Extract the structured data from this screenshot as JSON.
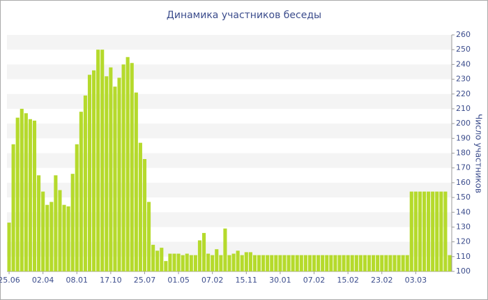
{
  "chart_data": {
    "type": "bar",
    "title": "Динамика участников беседы",
    "y_label": "Число участников",
    "categories": [
      "25.06",
      null,
      null,
      null,
      null,
      null,
      null,
      null,
      "02.04",
      null,
      null,
      null,
      null,
      null,
      null,
      null,
      "08.01",
      null,
      null,
      null,
      null,
      null,
      null,
      null,
      "17.10",
      null,
      null,
      null,
      null,
      null,
      null,
      null,
      "25.07",
      null,
      null,
      null,
      null,
      null,
      null,
      null,
      "01.05",
      null,
      null,
      null,
      null,
      null,
      null,
      null,
      "07.02",
      null,
      null,
      null,
      null,
      null,
      null,
      null,
      "15.11",
      null,
      null,
      null,
      null,
      null,
      null,
      null,
      "30.01",
      null,
      null,
      null,
      null,
      null,
      null,
      null,
      "07.02",
      null,
      null,
      null,
      null,
      null,
      null,
      null,
      "15.02",
      null,
      null,
      null,
      null,
      null,
      null,
      null,
      "23.02",
      null,
      null,
      null,
      null,
      null,
      null,
      null,
      "03.03",
      null,
      null,
      null,
      null,
      null,
      null,
      null,
      null
    ],
    "values": [
      133,
      186,
      204,
      210,
      207,
      203,
      202,
      165,
      154,
      145,
      147,
      165,
      155,
      145,
      144,
      166,
      186,
      208,
      219,
      233,
      236,
      250,
      250,
      232,
      238,
      225,
      231,
      240,
      245,
      241,
      221,
      187,
      176,
      147,
      118,
      114,
      116,
      107,
      112,
      112,
      112,
      111,
      112,
      111,
      111,
      121,
      126,
      112,
      111,
      115,
      111,
      129,
      111,
      112,
      114,
      111,
      113,
      113,
      111,
      111,
      111,
      111,
      111,
      111,
      111,
      111,
      111,
      111,
      111,
      111,
      111,
      111,
      111,
      111,
      111,
      111,
      111,
      111,
      111,
      111,
      111,
      111,
      111,
      111,
      111,
      111,
      111,
      111,
      111,
      111,
      111,
      111,
      111,
      111,
      111,
      154,
      154,
      154,
      154,
      154,
      154,
      154,
      154,
      154,
      111
    ],
    "color": "#b5da2c",
    "ylim": [
      100,
      260
    ],
    "yticks": [
      100,
      110,
      120,
      130,
      140,
      150,
      160,
      170,
      180,
      190,
      200,
      210,
      220,
      230,
      240,
      250,
      260
    ],
    "grid": true
  }
}
